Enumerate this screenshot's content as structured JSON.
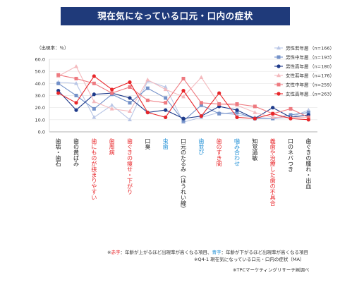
{
  "title": "現在気になっている口元・口内の症状",
  "chart_data": {
    "type": "line",
    "unit_label": "（出現率：％）",
    "ylim": [
      0,
      60
    ],
    "yticks": [
      "0.0",
      "10.0",
      "20.0",
      "30.0",
      "40.0",
      "50.0",
      "60.0"
    ],
    "categories": [
      {
        "label": "歯垢・歯石",
        "color": "#222222"
      },
      {
        "label": "歯の黄ばみ",
        "color": "#222222"
      },
      {
        "label": "歯にものが挟まりやすい",
        "color": "#e8262a"
      },
      {
        "label": "歯周病",
        "color": "#e8262a"
      },
      {
        "label": "歯ぐきの痩せ・下がり",
        "color": "#e8262a"
      },
      {
        "label": "口臭",
        "color": "#222222"
      },
      {
        "label": "虫歯",
        "color": "#1f8fd6"
      },
      {
        "label": "口元のたるみ（ほうれい線）",
        "color": "#222222"
      },
      {
        "label": "歯並び",
        "color": "#1f8fd6"
      },
      {
        "label": "歯のすき間",
        "color": "#e8262a"
      },
      {
        "label": "噛み合わせ",
        "color": "#1f8fd6"
      },
      {
        "label": "知覚過敏",
        "color": "#222222"
      },
      {
        "label": "義歯や治療した歯の不具合",
        "color": "#e8262a"
      },
      {
        "label": "口のネバつき",
        "color": "#222222"
      },
      {
        "label": "歯ぐきの腫れ・出血",
        "color": "#222222"
      }
    ],
    "series": [
      {
        "name": "男性若年層",
        "n": "（n=166）",
        "color": "#b9c6e6",
        "marker": "triangle",
        "values": [
          41,
          40,
          12,
          22,
          10,
          42,
          37,
          8,
          12,
          16,
          14,
          12,
          11,
          12,
          18
        ]
      },
      {
        "name": "男性中年層",
        "n": "（n=193）",
        "color": "#7391c9",
        "marker": "square",
        "values": [
          40,
          30,
          19,
          31,
          24,
          36,
          28,
          9,
          22,
          15,
          16,
          11,
          11,
          14,
          16
        ]
      },
      {
        "name": "男性高年層",
        "n": "（n=180）",
        "color": "#1e3a8a",
        "marker": "circle",
        "values": [
          34,
          18,
          31,
          32,
          28,
          16,
          18,
          11,
          13,
          21,
          18,
          11,
          20,
          12,
          14
        ]
      },
      {
        "name": "女性若年層",
        "n": "（n=176）",
        "color": "#f4b9bd",
        "marker": "triangle",
        "values": [
          46,
          54,
          25,
          19,
          17,
          43,
          35,
          29,
          45,
          23,
          22,
          16,
          12,
          12,
          12
        ]
      },
      {
        "name": "女性中年層",
        "n": "（n=259）",
        "color": "#ee7a80",
        "marker": "square",
        "values": [
          47,
          44,
          40,
          32,
          37,
          26,
          24,
          44,
          24,
          23,
          23,
          21,
          15,
          19,
          12
        ]
      },
      {
        "name": "女性高年層",
        "n": "（n=263）",
        "color": "#e8262a",
        "marker": "circle",
        "values": [
          32,
          24,
          46,
          35,
          41,
          16,
          12,
          34,
          13,
          32,
          12,
          11,
          15,
          11,
          10
        ]
      }
    ]
  },
  "notes": {
    "line1_mark": "※",
    "line1_red": "赤字",
    "line1_a": "：年齢が上がるほど出現率が高くなる項目、",
    "line1_blue": "青字",
    "line1_b": "：年齢が下がるほど出現率が高くなる項目",
    "line2": "※Q4-1 現在気になっている口元・口内の症状（MA）",
    "credit": "※TPCマーケティングリサーチ㈱調べ"
  }
}
